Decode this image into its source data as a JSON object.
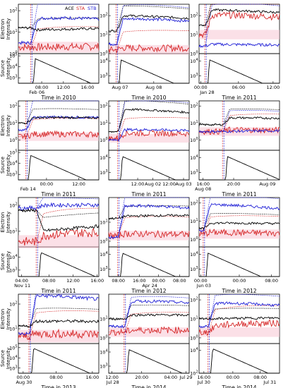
{
  "figure": {
    "legend": [
      {
        "label": "ACE",
        "color": "#000000"
      },
      {
        "label": "STA",
        "color": "#d62728"
      },
      {
        "label": "STB",
        "color": "#1f1fd6"
      }
    ],
    "ylabel_top": "Electron\nIntensity",
    "ylabel_bottom": "Source\nIntensity",
    "xlabel_prefix": "Time in"
  },
  "chart_data": [
    {
      "type": "line",
      "year": "2011",
      "event_frac": 0.0,
      "ticks": [],
      "shock": false,
      "top_range": [
        0,
        3
      ],
      "bot_range": [
        2,
        5
      ],
      "top_labels": [
        "10^0",
        "10^1",
        "10^2"
      ],
      "bot_labels": [
        "10^3",
        "10^4",
        "10^5"
      ]
    }
  ]
}
